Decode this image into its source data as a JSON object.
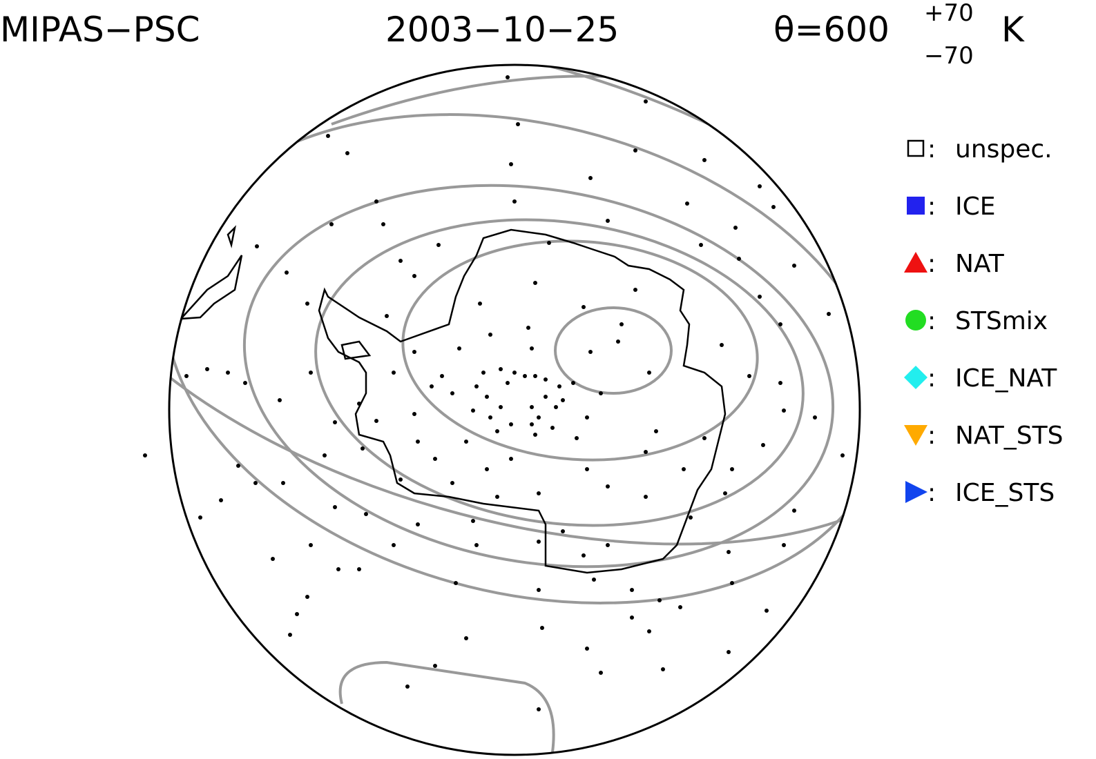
{
  "header": {
    "left": "MIPAS−PSC",
    "center": "2003−10−25",
    "theta": "θ=600",
    "theta_upper": "+70",
    "theta_lower": "−70",
    "unit": "K"
  },
  "legend": {
    "separator": ":",
    "items": [
      {
        "label": "unspec.",
        "color": "#ffffff"
      },
      {
        "label": "ICE",
        "color": "#2222ee"
      },
      {
        "label": "NAT",
        "color": "#ee1111"
      },
      {
        "label": "STSmix",
        "color": "#22dd22"
      },
      {
        "label": "ICE_NAT",
        "color": "#22eeee"
      },
      {
        "label": "NAT_STS",
        "color": "#ffaa00"
      },
      {
        "label": "ICE_STS",
        "color": "#1144ee"
      }
    ]
  }
}
